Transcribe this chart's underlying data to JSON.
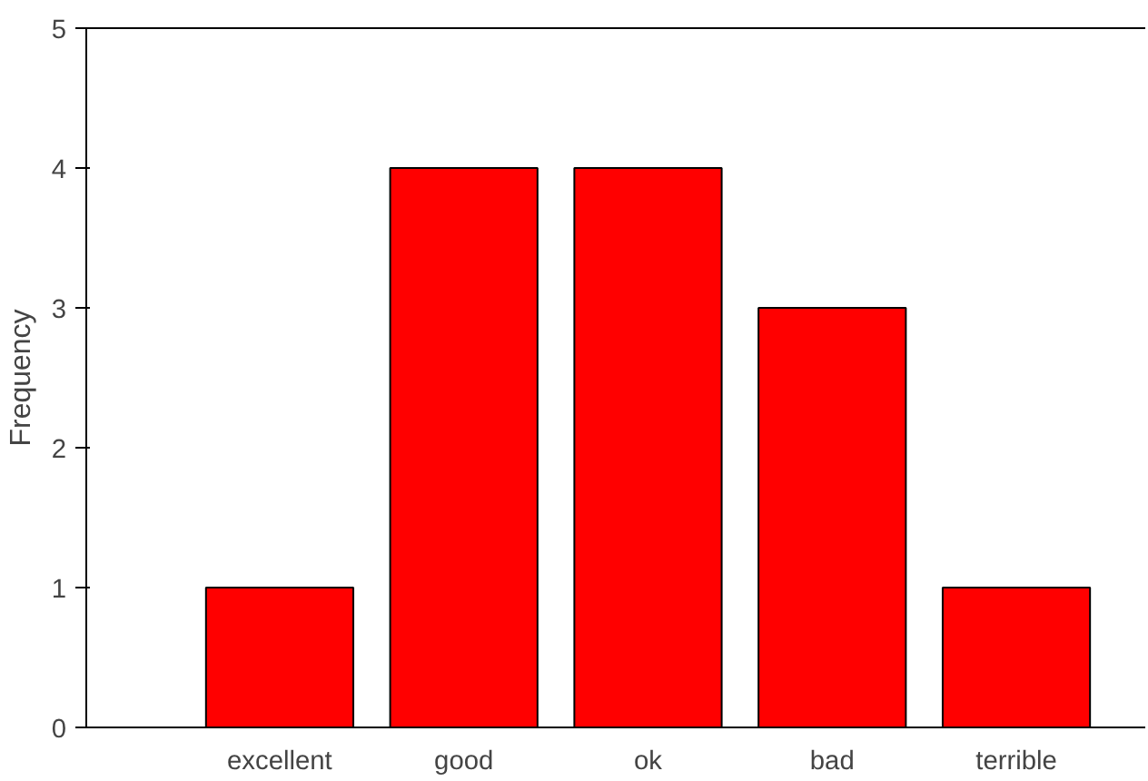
{
  "chart_data": {
    "type": "bar",
    "ylabel": "Frequency",
    "categories": [
      "excellent",
      "good",
      "ok",
      "bad",
      "terrible"
    ],
    "values": [
      1,
      4,
      4,
      3,
      1
    ],
    "color": "#ff0000",
    "ylim": [
      0,
      5
    ],
    "yticks": [
      0,
      1,
      2,
      3,
      4,
      5
    ],
    "grid": false
  }
}
